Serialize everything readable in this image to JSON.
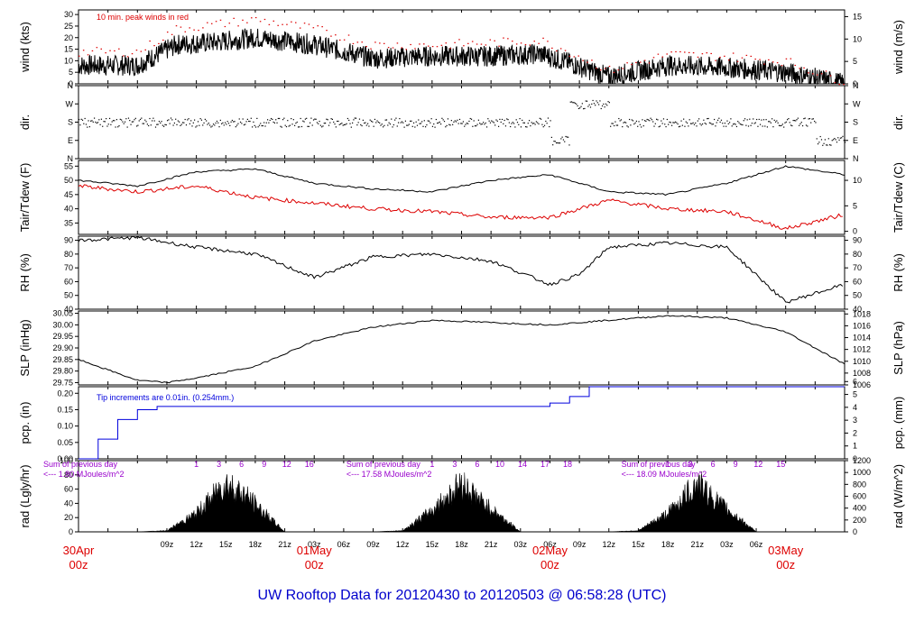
{
  "title": "UW Rooftop Data for 20120430  to  20120503 @ 06:58:28  (UTC)",
  "x_axis": {
    "hour_ticks": [
      "09z",
      "12z",
      "15z",
      "18z",
      "21z",
      "03z",
      "06z",
      "09z",
      "12z",
      "15z",
      "18z",
      "21z",
      "03z",
      "06z",
      "09z",
      "12z",
      "15z",
      "18z",
      "21z",
      "03z",
      "06z"
    ],
    "day_labels": [
      {
        "line1": "30Apr",
        "line2": "00z"
      },
      {
        "line1": "01May",
        "line2": "00z"
      },
      {
        "line1": "02May",
        "line2": "00z"
      },
      {
        "line1": "03May",
        "line2": "00z"
      }
    ]
  },
  "panels": [
    {
      "name": "wind",
      "left_label": "wind (kts)",
      "right_label": "wind (m/s)",
      "left_ticks": [
        "0",
        "5",
        "10",
        "15",
        "20",
        "25",
        "30"
      ],
      "right_ticks": [
        "0",
        "5",
        "10",
        "15"
      ],
      "annotation": "10 min. peak winds in red"
    },
    {
      "name": "dir",
      "left_label": "dir.",
      "right_label": "dir.",
      "left_ticks": [
        "N",
        "E",
        "S",
        "W",
        "N"
      ],
      "right_ticks": [
        "N",
        "E",
        "S",
        "W",
        "N"
      ]
    },
    {
      "name": "temp",
      "left_label": "Tair/Tdew (F)",
      "right_label": "Tair/Tdew (C)",
      "left_ticks": [
        "35",
        "40",
        "45",
        "50",
        "55"
      ],
      "right_ticks": [
        "0",
        "5",
        "10"
      ]
    },
    {
      "name": "rh",
      "left_label": "RH (%)",
      "right_label": "RH (%)",
      "left_ticks": [
        "40",
        "50",
        "60",
        "70",
        "80",
        "90"
      ],
      "right_ticks": [
        "40",
        "50",
        "60",
        "70",
        "80",
        "90"
      ]
    },
    {
      "name": "slp",
      "left_label": "SLP (inHg)",
      "right_label": "SLP (hPa)",
      "left_ticks": [
        "29.75",
        "29.80",
        "29.85",
        "29.90",
        "29.95",
        "30.00",
        "30.05"
      ],
      "right_ticks": [
        "1006",
        "1008",
        "1010",
        "1012",
        "1014",
        "1016",
        "1018"
      ]
    },
    {
      "name": "pcp",
      "left_label": "pcp. (in)",
      "right_label": "pcp. (mm)",
      "left_ticks": [
        "0.00",
        "0.05",
        "0.10",
        "0.15",
        "0.20"
      ],
      "right_ticks": [
        "0",
        "1",
        "2",
        "3",
        "4",
        "5",
        "6"
      ],
      "annotation": "Tip increments are 0.01in. (0.254mm.)"
    },
    {
      "name": "rad",
      "left_label": "rad (Lgly/hr)",
      "right_label": "rad (W/m^2)",
      "left_ticks": [
        "0",
        "20",
        "40",
        "60",
        "80",
        "100"
      ],
      "right_ticks": [
        "0",
        "200",
        "400",
        "600",
        "800",
        "1000",
        "1200"
      ],
      "daily": [
        {
          "sum_line1": "Sum of previous day",
          "sum_line2": "<--- 1.80 MJoules/m^2",
          "hours": [
            "1",
            "3",
            "6",
            "9",
            "12",
            "16"
          ]
        },
        {
          "sum_line1": "Sum of previous day",
          "sum_line2": "<--- 17.58 MJoules/m^2",
          "hours": [
            "1",
            "3",
            "6",
            "10",
            "14",
            "17",
            "18"
          ]
        },
        {
          "sum_line1": "Sum of previous day",
          "sum_line2": "<--- 18.09 MJoules/m^2",
          "hours": [
            "1",
            "3",
            "6",
            "9",
            "12",
            "15"
          ]
        }
      ]
    }
  ],
  "colors": {
    "trace": "#000000",
    "peak": "#dd0000",
    "dew": "#dd0000",
    "pcp": "#0000dd",
    "note": "#9900cc",
    "day": "#dd0000",
    "title": "#0000cc"
  },
  "chart_data": [
    {
      "type": "line",
      "name": "wind",
      "ylabel": "wind (kts)",
      "ylim": [
        0,
        32
      ],
      "x": [
        0,
        6,
        10,
        14,
        18,
        24,
        30,
        36,
        42,
        47,
        50,
        54,
        60,
        66,
        72,
        78
      ],
      "series": [
        {
          "name": "wind",
          "values": [
            8,
            8,
            17,
            18,
            20,
            17,
            11,
            12,
            12,
            13,
            9,
            3,
            8,
            7,
            5,
            0
          ]
        },
        {
          "name": "peak",
          "values": [
            14,
            14,
            24,
            26,
            28,
            24,
            17,
            17,
            18,
            19,
            14,
            6,
            13,
            12,
            10,
            1
          ]
        }
      ]
    },
    {
      "type": "scatter",
      "name": "dir",
      "ylim": [
        "N",
        "N"
      ],
      "x": [
        0,
        12,
        24,
        36,
        46,
        48,
        50,
        54,
        60,
        66,
        72,
        75,
        78
      ],
      "values": [
        "S",
        "S",
        "S",
        "S",
        "S",
        "W",
        "E",
        "S",
        "S",
        "S",
        "S",
        "W",
        "E"
      ]
    },
    {
      "type": "line",
      "name": "temp",
      "ylabel": "Tair/Tdew (F)",
      "ylim": [
        31,
        57
      ],
      "x": [
        0,
        6,
        12,
        18,
        24,
        30,
        36,
        42,
        48,
        52,
        54,
        60,
        66,
        72,
        78
      ],
      "series": [
        {
          "name": "Tair",
          "values": [
            50,
            48,
            53,
            54,
            49,
            47,
            46,
            50,
            52,
            48,
            46,
            45,
            49,
            55,
            52
          ]
        },
        {
          "name": "Tdew",
          "values": [
            48,
            46,
            48,
            44,
            42,
            40,
            39,
            37,
            37,
            41,
            43,
            40,
            39,
            33,
            38
          ]
        }
      ]
    },
    {
      "type": "line",
      "name": "rh",
      "ylabel": "RH (%)",
      "ylim": [
        40,
        93
      ],
      "x": [
        0,
        6,
        12,
        18,
        24,
        30,
        36,
        42,
        48,
        51,
        54,
        60,
        66,
        72,
        78
      ],
      "values": [
        90,
        92,
        85,
        80,
        63,
        78,
        80,
        75,
        58,
        65,
        85,
        88,
        85,
        45,
        58
      ]
    },
    {
      "type": "line",
      "name": "slp",
      "ylabel": "SLP (inHg)",
      "ylim": [
        29.74,
        30.06
      ],
      "x": [
        0,
        6,
        9,
        12,
        18,
        24,
        30,
        36,
        42,
        48,
        54,
        60,
        66,
        72,
        78
      ],
      "values": [
        29.85,
        29.76,
        29.75,
        29.77,
        29.82,
        29.93,
        29.99,
        30.02,
        30.01,
        30.0,
        30.02,
        30.04,
        30.03,
        29.97,
        29.83
      ]
    },
    {
      "type": "line",
      "name": "pcp",
      "ylabel": "pcp. (in)",
      "ylim": [
        0,
        0.22
      ],
      "x": [
        0,
        2,
        4,
        6,
        8,
        24,
        40,
        46,
        48,
        50,
        52,
        78
      ],
      "values": [
        0,
        0.06,
        0.12,
        0.15,
        0.16,
        0.16,
        0.16,
        0.16,
        0.17,
        0.19,
        0.22,
        0.22
      ]
    },
    {
      "type": "area",
      "name": "rad",
      "ylabel": "rad (Lgly/hr)",
      "ylim": [
        0,
        100
      ],
      "x": [
        6,
        9,
        12,
        15,
        17,
        21,
        24,
        30,
        33,
        36,
        39,
        41,
        45,
        48,
        54,
        57,
        60,
        63,
        65,
        69,
        72,
        78
      ],
      "values": [
        0,
        2,
        30,
        80,
        60,
        0,
        0,
        0,
        2,
        35,
        80,
        50,
        0,
        0,
        0,
        2,
        30,
        80,
        50,
        0,
        0,
        0
      ]
    }
  ]
}
